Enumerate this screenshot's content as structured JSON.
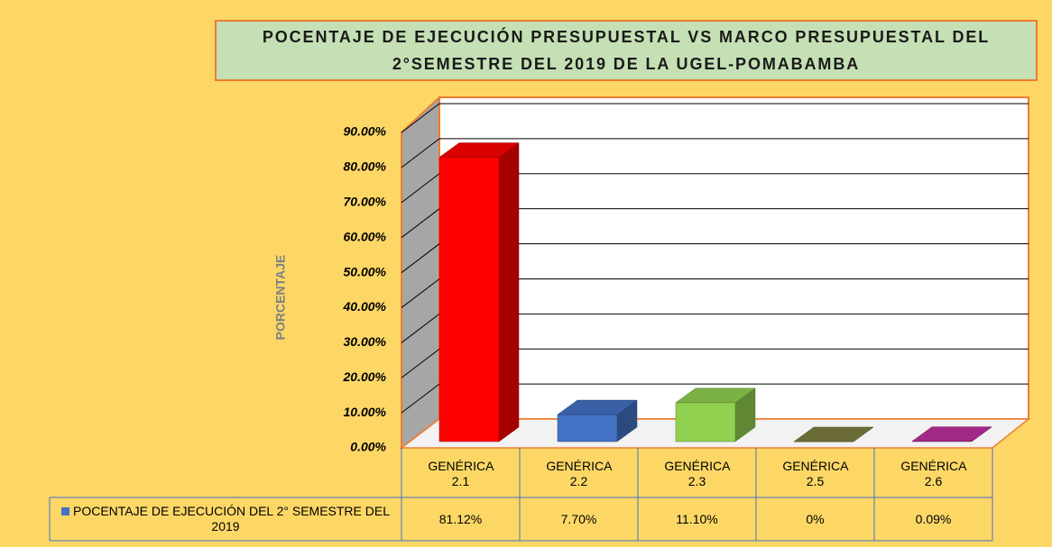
{
  "chart_data": {
    "type": "bar3d",
    "title": "POCENTAJE DE EJECUCIÓN PRESUPUESTAL VS MARCO PRESUPUESTAL DEL 2°SEMESTRE DEL 2019 DE LA UGEL-POMABAMBA",
    "y_axis_label": "PORCENTAJE",
    "categories": [
      "GENÉRICA 2.1",
      "GENÉRICA 2.2",
      "GENÉRICA 2.3",
      "GENÉRICA 2.5",
      "GENÉRICA 2.6"
    ],
    "series": [
      {
        "name": "POCENTAJE DE EJECUCIÓN DEL 2° SEMESTRE DEL 2019",
        "color": "#4472c4",
        "values": [
          81.12,
          7.7,
          11.1,
          0,
          0.09
        ],
        "value_labels": [
          "81.12%",
          "7.70%",
          "11.10%",
          "0%",
          "0.09%"
        ],
        "colors": [
          "#ff0000",
          "#4472c4",
          "#92d050",
          "#7f7f3f",
          "#c030a0"
        ]
      }
    ],
    "ylim": [
      0,
      90
    ],
    "yticks": [
      {
        "value": 0,
        "label": "0.00%"
      },
      {
        "value": 10,
        "label": "10.00%"
      },
      {
        "value": 20,
        "label": "20.00%"
      },
      {
        "value": 30,
        "label": "30.00%"
      },
      {
        "value": 40,
        "label": "40.00%"
      },
      {
        "value": 50,
        "label": "50.00%"
      },
      {
        "value": 60,
        "label": "60.00%"
      },
      {
        "value": 70,
        "label": "70.00%"
      },
      {
        "value": 80,
        "label": "80.00%"
      },
      {
        "value": 90,
        "label": "90.00%"
      }
    ],
    "grid": true
  }
}
